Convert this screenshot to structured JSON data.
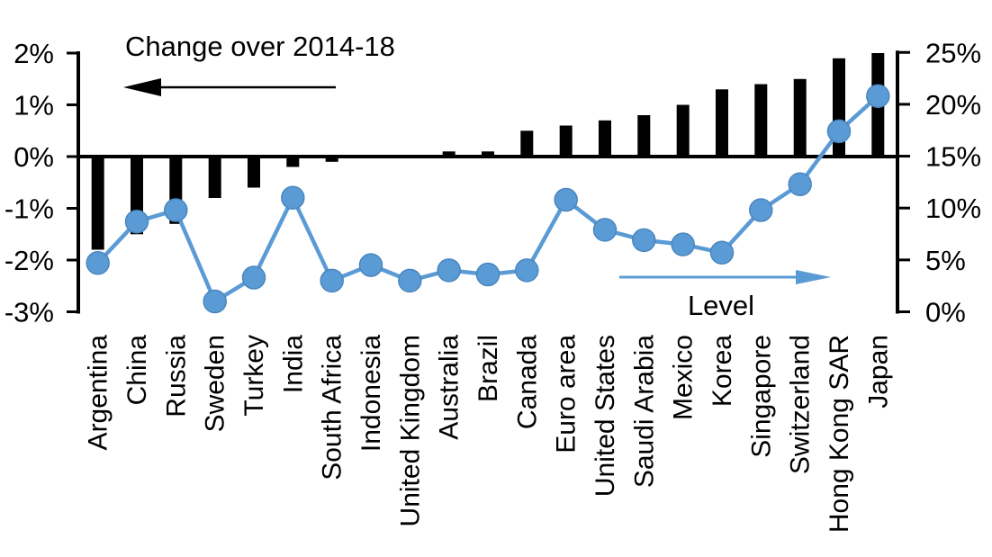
{
  "chart_data": {
    "type": "bar",
    "combo_types": [
      "bar",
      "line"
    ],
    "categories": [
      "Argentina",
      "China",
      "Russia",
      "Sweden",
      "Turkey",
      "India",
      "South Africa",
      "Indonesia",
      "United Kingdom",
      "Australia",
      "Brazil",
      "Canada",
      "Euro area",
      "United States",
      "Saudi Arabia",
      "Mexico",
      "Korea",
      "Singapore",
      "Switzerland",
      "Hong Kong SAR",
      "Japan"
    ],
    "series": [
      {
        "name": "Change over 2014-18",
        "type": "bar",
        "axis": "left",
        "color": "#000000",
        "values": [
          -1.8,
          -1.5,
          -1.3,
          -0.8,
          -0.6,
          -0.2,
          -0.1,
          0,
          0,
          0.1,
          0.1,
          0.5,
          0.6,
          0.7,
          0.8,
          1.0,
          1.3,
          1.4,
          1.5,
          1.9,
          2.0
        ]
      },
      {
        "name": "Level",
        "type": "line",
        "axis": "right",
        "color": "#5B9BD5",
        "marker_edge": "#4A86BE",
        "values": [
          4.7,
          8.7,
          9.8,
          1.0,
          3.3,
          11.0,
          3.0,
          4.5,
          3.0,
          4.0,
          3.6,
          4.0,
          10.8,
          7.9,
          6.9,
          6.5,
          5.7,
          9.8,
          12.3,
          17.4,
          20.8
        ]
      }
    ],
    "left_axis": {
      "ticks": [
        "2%",
        "1%",
        "0%",
        "-1%",
        "-2%",
        "-3%"
      ],
      "tick_values": [
        2,
        1,
        0,
        -1,
        -2,
        -3
      ],
      "min": -3,
      "max": 2
    },
    "right_axis": {
      "ticks": [
        "25%",
        "20%",
        "15%",
        "10%",
        "5%",
        "0%"
      ],
      "tick_values": [
        25,
        20,
        15,
        10,
        5,
        0
      ],
      "min": 0,
      "max": 25
    },
    "annotations": {
      "bar_label": "Change over 2014-18",
      "line_label": "Level"
    },
    "grid": false,
    "legend_position": "in-plot arrows"
  }
}
